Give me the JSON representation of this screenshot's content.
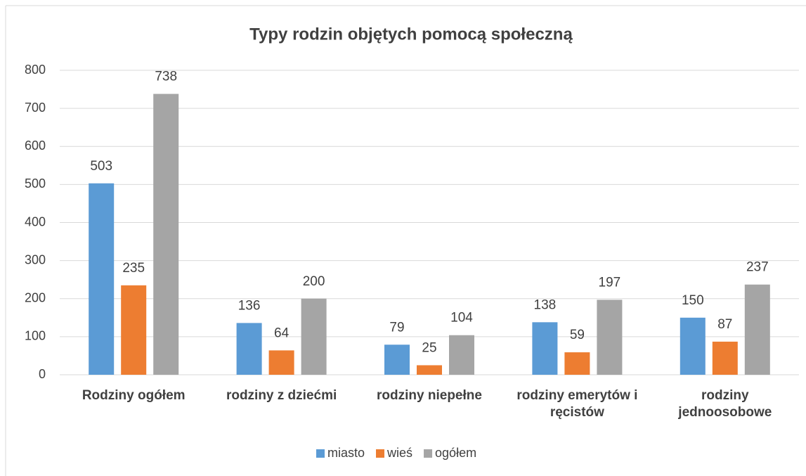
{
  "chart_data": {
    "type": "bar",
    "title": "Typy rodzin objętych pomocą społeczną",
    "categories": [
      "Rodziny ogółem",
      "rodziny z dziećmi",
      "rodziny niepełne",
      "rodziny emerytów i ręcistów",
      "rodziny jednoosobowe"
    ],
    "series": [
      {
        "name": "miasto",
        "color": "#5b9bd5",
        "values": [
          503,
          136,
          79,
          138,
          150
        ]
      },
      {
        "name": "wieś",
        "color": "#ed7d31",
        "values": [
          235,
          64,
          25,
          59,
          87
        ]
      },
      {
        "name": "ogółem",
        "color": "#a5a5a5",
        "values": [
          738,
          200,
          104,
          197,
          237
        ]
      }
    ],
    "ylim": [
      0,
      800
    ],
    "yticks": [
      0,
      100,
      200,
      300,
      400,
      500,
      600,
      700,
      800
    ],
    "grid": true,
    "legend": "bottom"
  }
}
